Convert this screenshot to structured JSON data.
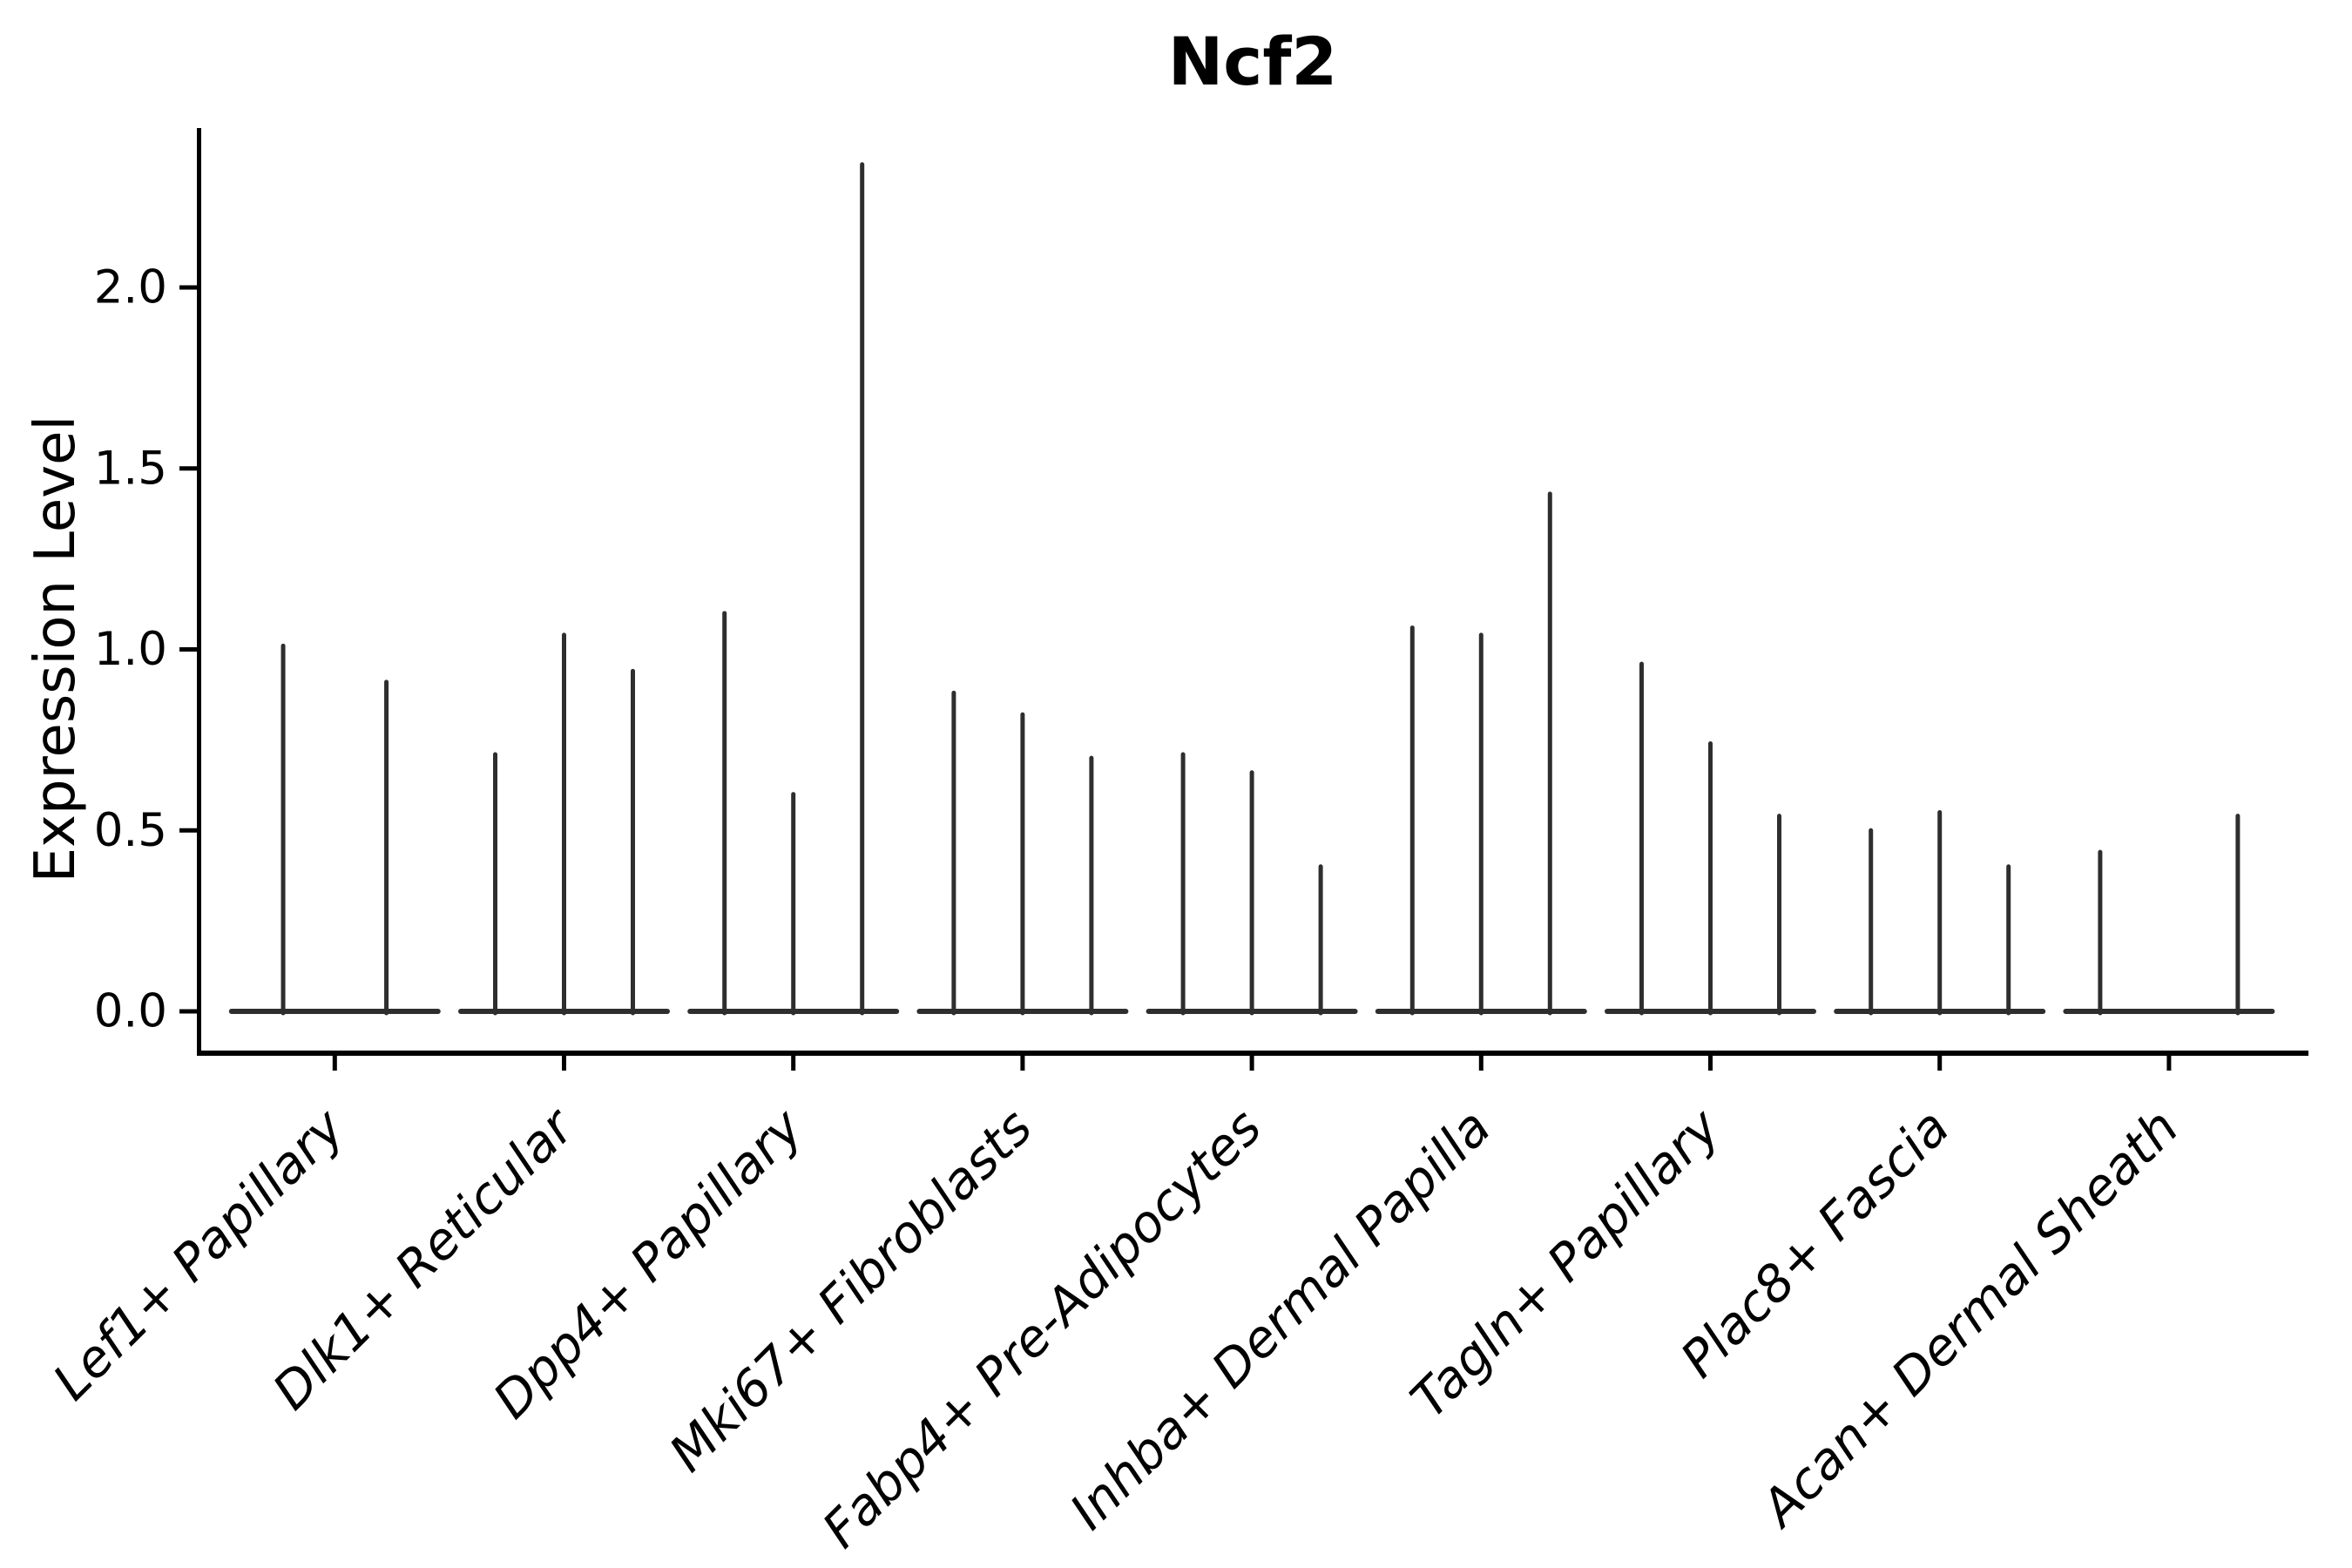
{
  "chart_data": {
    "type": "violin",
    "title": "Ncf2",
    "ylabel": "Expression Level",
    "xlabel": "",
    "ylim": [
      -0.12,
      2.45
    ],
    "grid": false,
    "legend": "none",
    "yticks": [
      {
        "label": "0.0",
        "value": 0.0
      },
      {
        "label": "0.5",
        "value": 0.5
      },
      {
        "label": "1.0",
        "value": 1.0
      },
      {
        "label": "1.5",
        "value": 1.5
      },
      {
        "label": "2.0",
        "value": 2.0
      }
    ],
    "categories": [
      "Lef1+ Papillary",
      "Dlk1+ Reticular",
      "Dpp4+ Papillary",
      "Mki67+ Fibroblasts",
      "Fabp4+ Pre-Adipocytes",
      "Inhba+ Dermal Papilla",
      "Tagln+ Papillary",
      "Plac8+ Fascia",
      "Acan+ Dermal Sheath"
    ],
    "groups": [
      {
        "label": "Lef1+ Papillary",
        "slots": 2,
        "spikes": [
          {
            "slot": 0,
            "value": 1.01
          },
          {
            "slot": 1,
            "value": 0.91
          }
        ]
      },
      {
        "label": "Dlk1+ Reticular",
        "slots": 3,
        "spikes": [
          {
            "slot": 0,
            "value": 0.71
          },
          {
            "slot": 1,
            "value": 1.04
          },
          {
            "slot": 2,
            "value": 0.94
          }
        ]
      },
      {
        "label": "Dpp4+ Papillary",
        "slots": 3,
        "spikes": [
          {
            "slot": 0,
            "value": 1.1
          },
          {
            "slot": 1,
            "value": 0.6
          },
          {
            "slot": 2,
            "value": 2.34
          }
        ]
      },
      {
        "label": "Mki67+ Fibroblasts",
        "slots": 3,
        "spikes": [
          {
            "slot": 0,
            "value": 0.88
          },
          {
            "slot": 1,
            "value": 0.82
          },
          {
            "slot": 2,
            "value": 0.7
          }
        ]
      },
      {
        "label": "Fabp4+ Pre-Adipocytes",
        "slots": 3,
        "spikes": [
          {
            "slot": 0,
            "value": 0.71
          },
          {
            "slot": 1,
            "value": 0.66
          },
          {
            "slot": 2,
            "value": 0.4
          }
        ]
      },
      {
        "label": "Inhba+ Dermal Papilla",
        "slots": 3,
        "spikes": [
          {
            "slot": 0,
            "value": 1.06
          },
          {
            "slot": 1,
            "value": 1.04
          },
          {
            "slot": 2,
            "value": 1.43
          }
        ]
      },
      {
        "label": "Tagln+ Papillary",
        "slots": 3,
        "spikes": [
          {
            "slot": 0,
            "value": 0.96
          },
          {
            "slot": 1,
            "value": 0.74
          },
          {
            "slot": 2,
            "value": 0.54
          }
        ]
      },
      {
        "label": "Plac8+ Fascia",
        "slots": 3,
        "spikes": [
          {
            "slot": 0,
            "value": 0.5
          },
          {
            "slot": 1,
            "value": 0.55
          },
          {
            "slot": 2,
            "value": 0.4
          }
        ]
      },
      {
        "label": "Acan+ Dermal Sheath",
        "slots": 3,
        "spikes": [
          {
            "slot": 0,
            "value": 0.44
          },
          {
            "slot": 2,
            "value": 0.54
          }
        ]
      }
    ],
    "style": {
      "violin_color": "#2e2e2e",
      "axis_color": "#000000",
      "background": "#ffffff"
    }
  }
}
